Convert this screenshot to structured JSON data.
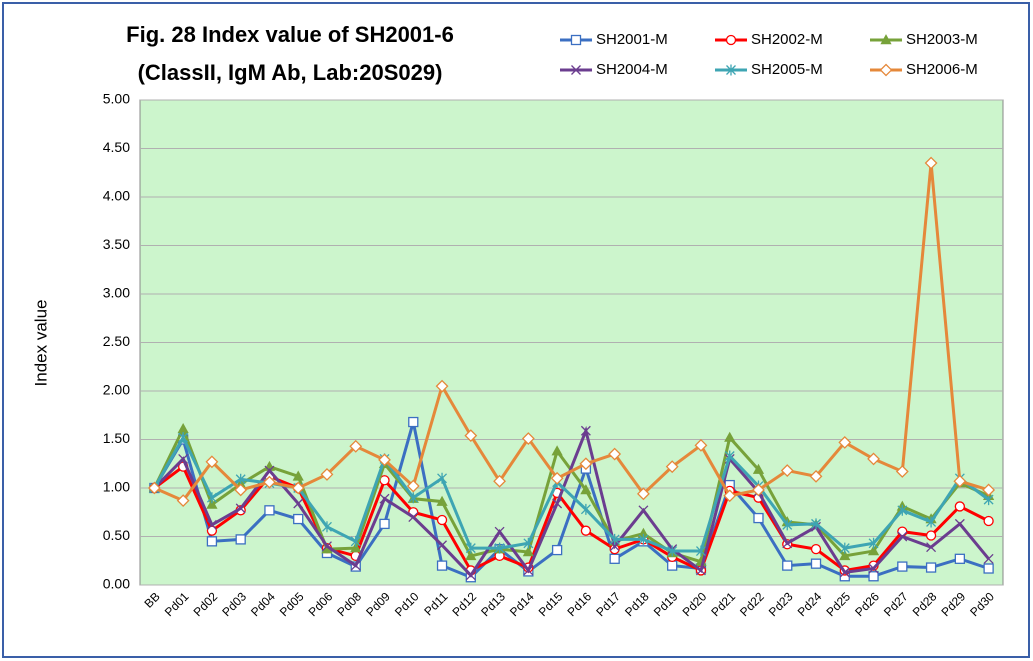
{
  "chart_data": {
    "type": "line",
    "title": "Fig. 28 Index value of SH2001-6",
    "subtitle": "(ClassII, IgM Ab, Lab:20S029)",
    "y_label": "Index value",
    "categories": [
      "BB",
      "Pd01",
      "Pd02",
      "Pd03",
      "Pd04",
      "Pd05",
      "Pd06",
      "Pd08",
      "Pd09",
      "Pd10",
      "Pd11",
      "Pd12",
      "Pd13",
      "Pd14",
      "Pd15",
      "Pd16",
      "Pd17",
      "Pd18",
      "Pd19",
      "Pd20",
      "Pd21",
      "Pd22",
      "Pd23",
      "Pd24",
      "Pd25",
      "Pd26",
      "Pd27",
      "Pd28",
      "Pd29",
      "Pd30"
    ],
    "ylim": [
      0,
      5
    ],
    "yticks": [
      {
        "value": 0,
        "label": "0.00"
      },
      {
        "value": 0.5,
        "label": "0.50"
      },
      {
        "value": 1,
        "label": "1.00"
      },
      {
        "value": 1.5,
        "label": "1.50"
      },
      {
        "value": 2,
        "label": "2.00"
      },
      {
        "value": 2.5,
        "label": "2.50"
      },
      {
        "value": 3,
        "label": "3.00"
      },
      {
        "value": 3.5,
        "label": "3.50"
      },
      {
        "value": 4,
        "label": "4.00"
      },
      {
        "value": 4.5,
        "label": "4.50"
      },
      {
        "value": 5,
        "label": "5.00"
      }
    ],
    "grid": true,
    "legend": "top-right",
    "plot_background": "#ccf5cc",
    "series": [
      {
        "name": "SH2001-M",
        "color": "#3b6fc2",
        "marker": "square",
        "values": [
          1.0,
          1.5,
          0.45,
          0.47,
          0.77,
          0.68,
          0.33,
          0.19,
          0.63,
          1.68,
          0.2,
          0.08,
          0.37,
          0.14,
          0.36,
          1.2,
          0.27,
          0.45,
          0.2,
          0.17,
          1.03,
          0.69,
          0.2,
          0.22,
          0.09,
          0.09,
          0.19,
          0.18,
          0.27,
          0.17
        ]
      },
      {
        "name": "SH2002-M",
        "color": "#ff0000",
        "marker": "circle",
        "values": [
          1.0,
          1.22,
          0.56,
          0.77,
          1.12,
          1.0,
          0.38,
          0.3,
          1.08,
          0.75,
          0.67,
          0.15,
          0.3,
          0.18,
          0.95,
          0.56,
          0.37,
          0.47,
          0.29,
          0.15,
          0.97,
          0.9,
          0.42,
          0.37,
          0.15,
          0.2,
          0.55,
          0.51,
          0.81,
          0.66
        ]
      },
      {
        "name": "SH2003-M",
        "color": "#77a23a",
        "marker": "triangle",
        "values": [
          1.0,
          1.61,
          0.83,
          1.04,
          1.22,
          1.12,
          0.37,
          0.38,
          1.25,
          0.89,
          0.86,
          0.3,
          0.37,
          0.34,
          1.38,
          0.98,
          0.45,
          0.53,
          0.33,
          0.24,
          1.52,
          1.19,
          0.65,
          0.62,
          0.3,
          0.35,
          0.81,
          0.68,
          1.05,
          0.92
        ]
      },
      {
        "name": "SH2004-M",
        "color": "#6b3d8f",
        "marker": "x",
        "values": [
          1.0,
          1.3,
          0.62,
          0.79,
          1.18,
          0.84,
          0.4,
          0.2,
          0.89,
          0.7,
          0.41,
          0.1,
          0.55,
          0.15,
          0.84,
          1.59,
          0.4,
          0.77,
          0.37,
          0.15,
          1.3,
          0.96,
          0.43,
          0.6,
          0.13,
          0.17,
          0.5,
          0.39,
          0.63,
          0.27
        ]
      },
      {
        "name": "SH2005-M",
        "color": "#3ea5b3",
        "marker": "asterisk",
        "values": [
          1.0,
          1.52,
          0.9,
          1.09,
          1.05,
          1.0,
          0.6,
          0.45,
          1.3,
          0.9,
          1.1,
          0.38,
          0.38,
          0.43,
          1.06,
          0.78,
          0.47,
          0.47,
          0.35,
          0.35,
          1.33,
          1.02,
          0.62,
          0.63,
          0.38,
          0.43,
          0.77,
          0.65,
          1.1,
          0.88
        ]
      },
      {
        "name": "SH2006-M",
        "color": "#e5883a",
        "marker": "diamond",
        "values": [
          1.0,
          0.87,
          1.27,
          0.98,
          1.06,
          1.0,
          1.14,
          1.43,
          1.29,
          1.02,
          2.05,
          1.54,
          1.07,
          1.51,
          1.1,
          1.25,
          1.35,
          0.94,
          1.22,
          1.44,
          0.92,
          0.98,
          1.18,
          1.12,
          1.47,
          1.3,
          1.17,
          4.35,
          1.07,
          0.98
        ]
      }
    ]
  }
}
